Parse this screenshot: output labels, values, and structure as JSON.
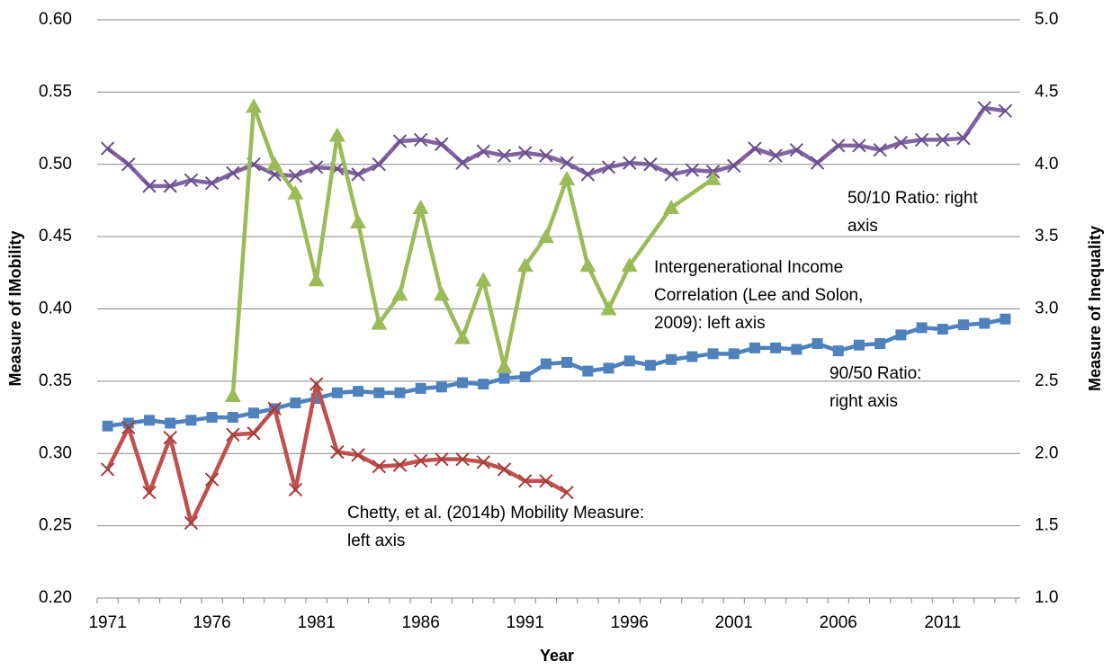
{
  "chart_data": {
    "type": "line",
    "x_label": "Year",
    "y_label": "Measure of IMobility",
    "y2_label": "Measure of Inequality",
    "xlim": [
      1970.5,
      2014.5
    ],
    "xticks": [
      1971,
      1976,
      1981,
      1986,
      1991,
      1996,
      2001,
      2006,
      2011
    ],
    "ylim": [
      0.2,
      0.6
    ],
    "yticks": [
      {
        "value": 0.2,
        "label": "0.20"
      },
      {
        "value": 0.25,
        "label": "0.25"
      },
      {
        "value": 0.3,
        "label": "0.30"
      },
      {
        "value": 0.35,
        "label": "0.35"
      },
      {
        "value": 0.4,
        "label": "0.40"
      },
      {
        "value": 0.45,
        "label": "0.45"
      },
      {
        "value": 0.5,
        "label": "0.50"
      },
      {
        "value": 0.55,
        "label": "0.55"
      },
      {
        "value": 0.6,
        "label": "0.60"
      }
    ],
    "y2lim": [
      1,
      5
    ],
    "y2ticks": [
      {
        "value": 1,
        "label": "1.0"
      },
      1.5,
      {
        "value": 2,
        "label": "2.0"
      },
      2.5,
      {
        "value": 3,
        "label": "3.0"
      },
      3.5,
      {
        "value": 4,
        "label": "4.0"
      },
      4.5,
      {
        "value": 5,
        "label": "5.0"
      }
    ],
    "grid": true,
    "x": [
      1971,
      1972,
      1973,
      1974,
      1975,
      1976,
      1977,
      1978,
      1979,
      1980,
      1981,
      1982,
      1983,
      1984,
      1985,
      1986,
      1987,
      1988,
      1989,
      1990,
      1991,
      1992,
      1993,
      1994,
      1995,
      1996,
      1997,
      1998,
      1999,
      2000,
      2001,
      2002,
      2003,
      2004,
      2005,
      2006,
      2007,
      2008,
      2009,
      2010,
      2011,
      2012,
      2013,
      2014
    ],
    "series": [
      {
        "name": "90/50 Ratio",
        "color": "#4f81bd",
        "marker": "square",
        "axis": "y2",
        "values": [
          2.19,
          2.21,
          2.23,
          2.21,
          2.23,
          2.25,
          2.25,
          2.28,
          2.31,
          2.35,
          2.38,
          2.42,
          2.43,
          2.42,
          2.42,
          2.45,
          2.46,
          2.49,
          2.48,
          2.52,
          2.53,
          2.62,
          2.63,
          2.57,
          2.59,
          2.64,
          2.61,
          2.65,
          2.67,
          2.69,
          2.69,
          2.73,
          2.73,
          2.72,
          2.76,
          2.71,
          2.75,
          2.76,
          2.82,
          2.87,
          2.86,
          2.89,
          2.9,
          2.93
        ]
      },
      {
        "name": "50/10 Ratio",
        "color": "#8064a2",
        "marker": "x",
        "axis": "y2",
        "values": [
          4.11,
          4.0,
          3.85,
          3.85,
          3.89,
          3.87,
          3.94,
          4.0,
          3.93,
          3.92,
          3.98,
          3.97,
          3.93,
          4.0,
          4.16,
          4.17,
          4.14,
          4.01,
          4.09,
          4.06,
          4.08,
          4.06,
          4.01,
          3.93,
          3.98,
          4.01,
          4.0,
          3.93,
          3.96,
          3.95,
          3.99,
          4.11,
          4.06,
          4.1,
          4.01,
          4.13,
          4.13,
          4.1,
          4.15,
          4.17,
          4.17,
          4.18,
          4.39,
          4.37
        ]
      },
      {
        "name": "Intergenerational Income Correlation",
        "color": "#9bbb59",
        "marker": "triangle",
        "x": [
          1977,
          1978,
          1979,
          1980,
          1981,
          1982,
          1983,
          1984,
          1985,
          1986,
          1987,
          1988,
          1989,
          1990,
          1991,
          1992,
          1993,
          1994,
          1995,
          1996,
          1998,
          2000
        ],
        "values": [
          0.34,
          0.54,
          0.5,
          0.48,
          0.42,
          0.52,
          0.46,
          0.39,
          0.41,
          0.47,
          0.41,
          0.38,
          0.42,
          0.36,
          0.43,
          0.45,
          0.49,
          0.43,
          0.4,
          0.43,
          0.47,
          0.49
        ]
      },
      {
        "name": "Chetty Mobility Measure",
        "color": "#c0504d",
        "marker": "x",
        "x": [
          1971,
          1972,
          1973,
          1974,
          1975,
          1976,
          1977,
          1978,
          1979,
          1980,
          1981,
          1982,
          1983,
          1984,
          1985,
          1986,
          1987,
          1988,
          1989,
          1990,
          1991,
          1992,
          1993
        ],
        "values": [
          0.289,
          0.318,
          0.273,
          0.311,
          0.252,
          0.282,
          0.313,
          0.314,
          0.331,
          0.275,
          0.348,
          0.301,
          0.299,
          0.291,
          0.292,
          0.295,
          0.296,
          0.296,
          0.294,
          0.289,
          0.281,
          0.281,
          0.273
        ]
      }
    ],
    "annotations": [
      [
        "50/10 Ratio: right",
        "axis"
      ],
      [
        "Intergenerational Income",
        "Correlation (Lee and Solon,",
        "2009): left axis"
      ],
      [
        "90/50 Ratio:",
        "right axis"
      ],
      [
        "Chetty, et al. (2014b) Mobility Measure:",
        "left axis"
      ]
    ]
  }
}
